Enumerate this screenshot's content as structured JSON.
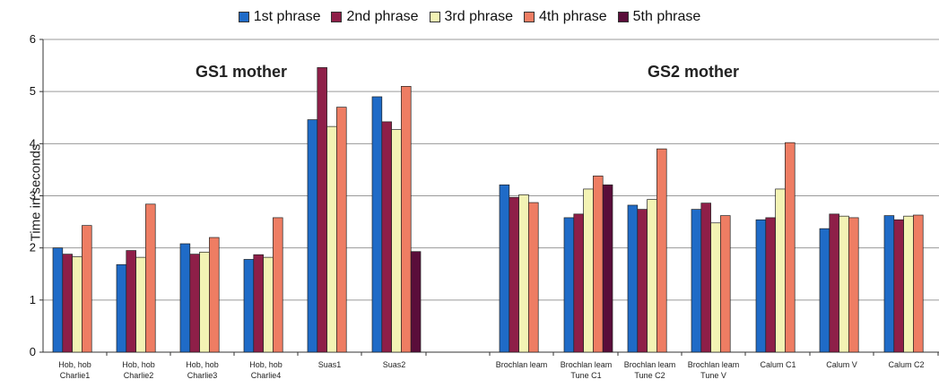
{
  "chart_data": {
    "type": "bar",
    "ylabel": "Time in seconds",
    "ylim": [
      0,
      6
    ],
    "yticks": [
      0,
      1,
      2,
      3,
      4,
      5,
      6
    ],
    "grid": true,
    "legend_position": "top",
    "group_labels": [
      "GS1 mother",
      "GS2 mother"
    ],
    "colors": [
      "#1f6bc7",
      "#8e1f48",
      "#f3f3b4",
      "#ee7d63",
      "#5a0d3a"
    ],
    "series": [
      {
        "name": "1st phrase"
      },
      {
        "name": "2nd phrase"
      },
      {
        "name": "3rd phrase"
      },
      {
        "name": "4th phrase"
      },
      {
        "name": "5th phrase"
      }
    ],
    "categories": [
      {
        "lines": [
          "Hob, hob",
          "Charlie1"
        ],
        "values": [
          2.0,
          1.88,
          1.83,
          2.43
        ]
      },
      {
        "lines": [
          "Hob, hob",
          "Charlie2"
        ],
        "values": [
          1.68,
          1.95,
          1.82,
          2.84
        ]
      },
      {
        "lines": [
          "Hob, hob",
          "Charlie3"
        ],
        "values": [
          2.08,
          1.88,
          1.92,
          2.2
        ]
      },
      {
        "lines": [
          "Hob, hob",
          "Charlie4"
        ],
        "values": [
          1.78,
          1.87,
          1.82,
          2.58
        ]
      },
      {
        "lines": [
          "Suas1"
        ],
        "values": [
          4.46,
          5.46,
          4.33,
          4.7
        ]
      },
      {
        "lines": [
          "Suas2"
        ],
        "values": [
          4.9,
          4.42,
          4.27,
          5.1,
          1.93
        ]
      },
      {
        "lines": [
          "Brochlan leam"
        ],
        "values": [
          3.21,
          2.97,
          3.02,
          2.87
        ]
      },
      {
        "lines": [
          "Brochlan leam",
          "Tune C1"
        ],
        "values": [
          2.58,
          2.65,
          3.13,
          3.38,
          3.21
        ]
      },
      {
        "lines": [
          "Brochlan leam",
          "Tune C2"
        ],
        "values": [
          2.82,
          2.74,
          2.93,
          3.9
        ]
      },
      {
        "lines": [
          "Brochlan leam",
          "Tune V"
        ],
        "values": [
          2.74,
          2.86,
          2.48,
          2.62
        ]
      },
      {
        "lines": [
          "Calum C1"
        ],
        "values": [
          2.54,
          2.58,
          3.13,
          4.02
        ]
      },
      {
        "lines": [
          "Calum V"
        ],
        "values": [
          2.37,
          2.65,
          2.61,
          2.58
        ]
      },
      {
        "lines": [
          "Calum C2"
        ],
        "values": [
          2.62,
          2.54,
          2.61,
          2.63
        ]
      }
    ]
  }
}
